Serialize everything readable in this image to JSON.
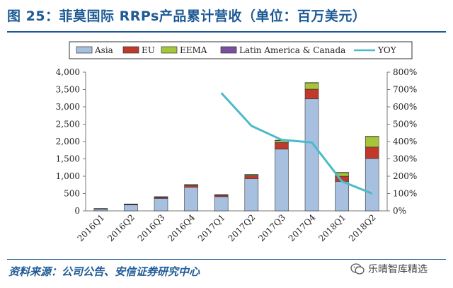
{
  "figure": {
    "title": "图 25：菲莫国际 RRPs产品累计营收（单位：百万美元）",
    "source": "资料来源：公司公告、安信证券研究中心",
    "watermark": "乐晴智库精选"
  },
  "colors": {
    "title_blue": "#1f5a96",
    "asia": "#a8c0e0",
    "eu": "#c0392b",
    "eema": "#a5c63b",
    "latam_canada": "#7a4fa0",
    "yoy": "#4bbacb"
  },
  "chart_data": {
    "type": "bar",
    "stacked": true,
    "categories": [
      "2016Q1",
      "2016Q2",
      "2016Q3",
      "2016Q4",
      "2017Q1",
      "2017Q2",
      "2017Q3",
      "2017Q4",
      "2018Q1",
      "2018Q2"
    ],
    "series": [
      {
        "name": "Asia",
        "values": [
          50,
          170,
          360,
          680,
          410,
          930,
          1780,
          3230,
          850,
          1510
        ]
      },
      {
        "name": "EU",
        "values": [
          10,
          20,
          30,
          50,
          40,
          80,
          190,
          280,
          150,
          330
        ]
      },
      {
        "name": "EEMA",
        "values": [
          5,
          5,
          10,
          20,
          10,
          30,
          60,
          180,
          100,
          300
        ]
      },
      {
        "name": "Latin America & Canada",
        "values": [
          5,
          5,
          10,
          10,
          10,
          10,
          10,
          10,
          10,
          10
        ]
      }
    ],
    "line": {
      "name": "YOY",
      "axis": "right",
      "values": [
        null,
        null,
        null,
        null,
        680,
        490,
        410,
        395,
        170,
        100
      ]
    },
    "yaxis_left": {
      "min": 0,
      "max": 4000,
      "step": 500,
      "ticks": [
        "0",
        "500",
        "1,000",
        "1,500",
        "2,000",
        "2,500",
        "3,000",
        "3,500",
        "4,000"
      ]
    },
    "yaxis_right": {
      "min": 0,
      "max": 800,
      "step": 100,
      "ticks": [
        "0%",
        "100%",
        "200%",
        "300%",
        "400%",
        "500%",
        "600%",
        "700%",
        "800%"
      ]
    },
    "legend": [
      "Asia",
      "EU",
      "EEMA",
      "Latin America & Canada",
      "YOY"
    ],
    "legend_position": "top",
    "grid": false
  }
}
